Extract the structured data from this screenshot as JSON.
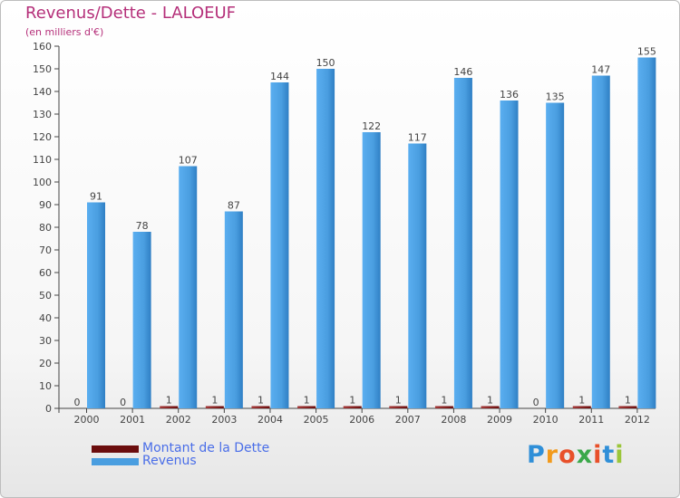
{
  "chart_data": {
    "type": "bar",
    "title": "Revenus/Dette - LALOEUF",
    "subtitle": "(en milliers d'€)",
    "xlabel": "",
    "ylabel": "",
    "ylim": [
      0,
      160
    ],
    "yticks": [
      0,
      10,
      20,
      30,
      40,
      50,
      60,
      70,
      80,
      90,
      100,
      110,
      120,
      130,
      140,
      150,
      160
    ],
    "grid": false,
    "categories": [
      "2000",
      "2001",
      "2002",
      "2003",
      "2004",
      "2005",
      "2006",
      "2007",
      "2008",
      "2009",
      "2010",
      "2011",
      "2012"
    ],
    "series": [
      {
        "name": "Montant de la Dette",
        "color": "#6b0d0d",
        "values": [
          0,
          0,
          1,
          1,
          1,
          1,
          1,
          1,
          1,
          1,
          0,
          1,
          1
        ]
      },
      {
        "name": "Revenus",
        "color": "#4a9ee0",
        "values": [
          91,
          78,
          107,
          87,
          144,
          150,
          122,
          117,
          146,
          136,
          135,
          147,
          155
        ]
      }
    ],
    "legend_position": "bottom-left"
  },
  "logo": {
    "text": "Proxiti",
    "letter_colors": [
      "#2f8fd8",
      "#f29a1c",
      "#e8502a",
      "#3aa84a",
      "#e8502a",
      "#2f8fd8",
      "#9bc63a"
    ]
  }
}
